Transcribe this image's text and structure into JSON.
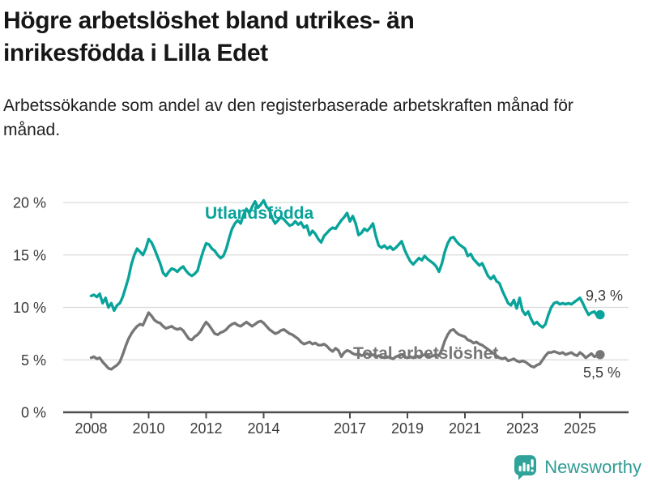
{
  "header": {
    "title": "Högre arbetslöshet bland utrikes- än inrikesfödda i Lilla Edet",
    "subtitle": "Arbetssökande som andel av den registerbaserade arbetskraften månad för månad."
  },
  "footer": {
    "brand": "Newsworthy"
  },
  "colors": {
    "foreign_born_line": "#08a39a",
    "total_line": "#767676",
    "gridline": "#dadada",
    "axis": "#4c4c4c",
    "value_label": "#3a3a3a",
    "logo_teal": "#2fa39a"
  },
  "chart_data": {
    "type": "line",
    "title": "Högre arbetslöshet bland utrikes- än inrikesfödda i Lilla Edet",
    "subtitle": "Arbetssökande som andel av den registerbaserade arbetskraften månad för månad.",
    "xlabel": "",
    "ylabel": "",
    "grid": true,
    "legend_position": "inline-labels",
    "x_start": 2008.0,
    "x_step": 0.1,
    "xlim": [
      2007.0,
      2026.7
    ],
    "ylim": [
      0,
      20.5
    ],
    "x_tick_values": [
      2008,
      2010,
      2012,
      2014,
      2017,
      2019,
      2021,
      2023,
      2025
    ],
    "x_tick_labels": [
      "2008",
      "2010",
      "2012",
      "2014",
      "2017",
      "2019",
      "2021",
      "2023",
      "2025"
    ],
    "y_tick_values": [
      0,
      5,
      10,
      15,
      20
    ],
    "y_tick_labels": [
      "0 %",
      "5 %",
      "10 %",
      "15 %",
      "20 %"
    ],
    "series": [
      {
        "name": "Utlandsfödda",
        "color": "#08a39a",
        "end_label": "9,3 %",
        "end_value": 9.3,
        "values": [
          11.1,
          11.2,
          11.0,
          11.3,
          10.4,
          10.9,
          10.0,
          10.4,
          9.7,
          10.2,
          10.4,
          11.0,
          11.9,
          12.8,
          14.1,
          15.0,
          15.6,
          15.3,
          15.0,
          15.6,
          16.5,
          16.2,
          15.6,
          14.9,
          14.2,
          13.3,
          13.0,
          13.4,
          13.7,
          13.6,
          13.4,
          13.7,
          13.9,
          13.5,
          13.2,
          13.0,
          13.2,
          13.5,
          14.5,
          15.4,
          16.1,
          16.0,
          15.6,
          15.4,
          15.0,
          14.7,
          14.9,
          15.6,
          16.6,
          17.5,
          18.0,
          18.3,
          18.0,
          18.8,
          19.4,
          19.0,
          19.6,
          20.1,
          19.5,
          19.8,
          20.2,
          19.6,
          19.3,
          18.5,
          18.0,
          18.3,
          18.6,
          18.4,
          18.1,
          17.8,
          17.9,
          18.2,
          17.9,
          18.1,
          17.6,
          17.8,
          16.9,
          17.3,
          17.0,
          16.5,
          16.2,
          16.8,
          17.1,
          17.4,
          17.6,
          17.5,
          17.9,
          18.3,
          18.6,
          19.0,
          18.2,
          18.7,
          18.0,
          16.9,
          17.1,
          17.5,
          17.3,
          17.6,
          18.0,
          16.8,
          15.9,
          15.7,
          15.9,
          15.6,
          15.8,
          15.5,
          15.7,
          16.0,
          16.3,
          15.5,
          14.9,
          14.4,
          14.1,
          14.4,
          14.7,
          14.5,
          14.9,
          14.6,
          14.4,
          14.2,
          13.9,
          13.4,
          14.2,
          15.3,
          16.1,
          16.6,
          16.7,
          16.3,
          16.0,
          15.8,
          15.6,
          14.9,
          15.1,
          14.6,
          14.3,
          14.0,
          14.2,
          13.6,
          13.0,
          12.7,
          13.0,
          12.5,
          12.3,
          11.6,
          11.0,
          10.4,
          10.2,
          10.7,
          9.9,
          10.9,
          9.7,
          9.3,
          9.6,
          8.9,
          8.4,
          8.6,
          8.3,
          8.1,
          8.4,
          9.3,
          10.0,
          10.4,
          10.5,
          10.3,
          10.4,
          10.3,
          10.4,
          10.3,
          10.5,
          10.7,
          10.9,
          10.4,
          9.8,
          9.3,
          9.5,
          9.6,
          9.2,
          9.3
        ]
      },
      {
        "name": "Total arbetslöshet",
        "color": "#767676",
        "end_label": "5,5 %",
        "end_value": 5.5,
        "values": [
          5.2,
          5.3,
          5.1,
          5.2,
          4.8,
          4.5,
          4.2,
          4.1,
          4.3,
          4.5,
          4.8,
          5.5,
          6.3,
          7.0,
          7.5,
          7.9,
          8.2,
          8.4,
          8.3,
          8.9,
          9.5,
          9.2,
          8.8,
          8.6,
          8.5,
          8.2,
          8.0,
          8.1,
          8.2,
          8.0,
          7.9,
          8.0,
          7.8,
          7.4,
          7.0,
          6.9,
          7.2,
          7.4,
          7.7,
          8.2,
          8.6,
          8.3,
          7.9,
          7.5,
          7.4,
          7.6,
          7.7,
          7.9,
          8.2,
          8.4,
          8.5,
          8.3,
          8.2,
          8.4,
          8.6,
          8.4,
          8.2,
          8.4,
          8.6,
          8.7,
          8.5,
          8.2,
          7.9,
          7.7,
          7.5,
          7.6,
          7.8,
          7.9,
          7.7,
          7.5,
          7.4,
          7.2,
          7.0,
          6.7,
          6.5,
          6.6,
          6.7,
          6.5,
          6.6,
          6.4,
          6.4,
          6.5,
          6.3,
          6.0,
          5.8,
          6.1,
          5.9,
          5.3,
          5.7,
          5.9,
          5.8,
          5.6,
          5.5,
          5.6,
          5.4,
          5.5,
          5.6,
          5.4,
          5.5,
          5.3,
          5.4,
          5.3,
          5.2,
          5.3,
          5.2,
          5.1,
          5.3,
          5.4,
          5.5,
          5.3,
          5.2,
          5.3,
          5.2,
          5.4,
          5.3,
          5.4,
          5.5,
          5.4,
          5.3,
          5.4,
          5.5,
          5.4,
          6.0,
          6.8,
          7.4,
          7.8,
          7.9,
          7.6,
          7.4,
          7.3,
          7.2,
          6.9,
          6.8,
          6.6,
          6.7,
          6.5,
          6.4,
          6.2,
          6.0,
          5.8,
          5.6,
          5.4,
          5.2,
          5.1,
          5.2,
          4.9,
          5.0,
          5.1,
          4.9,
          4.8,
          4.9,
          4.8,
          4.6,
          4.4,
          4.3,
          4.5,
          4.6,
          5.0,
          5.4,
          5.7,
          5.7,
          5.8,
          5.7,
          5.6,
          5.7,
          5.5,
          5.6,
          5.7,
          5.5,
          5.4,
          5.7,
          5.5,
          5.2,
          5.4,
          5.6,
          5.3,
          5.4,
          5.5
        ]
      }
    ]
  }
}
